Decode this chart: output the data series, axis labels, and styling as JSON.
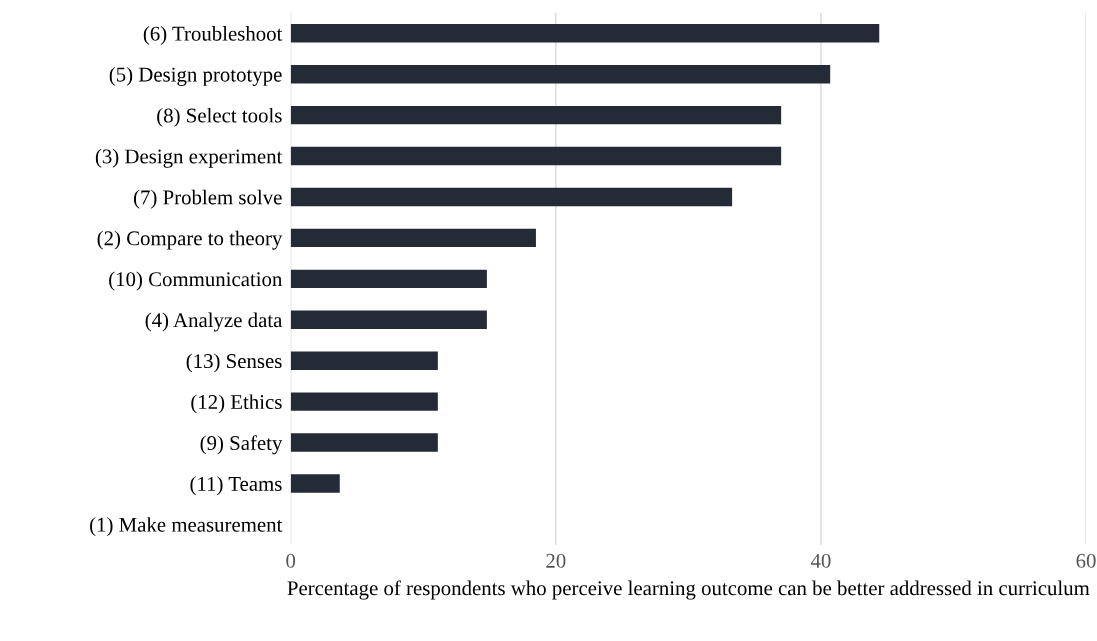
{
  "chart_data": {
    "type": "bar",
    "orientation": "horizontal",
    "categories": [
      "(6) Troubleshoot",
      "(5) Design prototype",
      "(8) Select tools",
      "(3) Design experiment",
      "(7) Problem solve",
      "(2) Compare to theory",
      "(10) Communication",
      "(4) Analyze data",
      "(13) Senses",
      "(12) Ethics",
      "(9) Safety",
      "(11) Teams",
      "(1) Make measurement"
    ],
    "values": [
      44.4,
      40.7,
      37.0,
      37.0,
      33.3,
      18.5,
      14.8,
      14.8,
      11.1,
      11.1,
      11.1,
      3.7,
      0
    ],
    "color": "#252a37",
    "xlim": [
      0,
      60
    ],
    "xticks": [
      0,
      20,
      40,
      60
    ],
    "xlabel": "Percentage of respondents who perceive learning outcome can be better addressed in curriculum",
    "grid": "x"
  }
}
